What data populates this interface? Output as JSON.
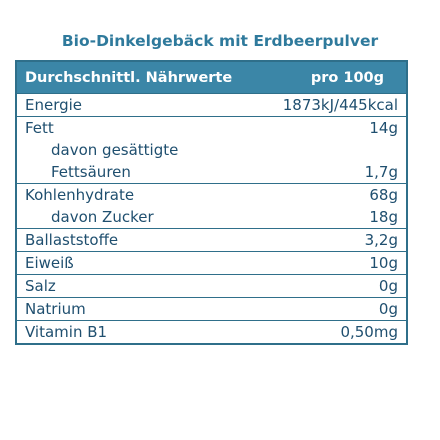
{
  "title": "Bio-Dinkelgebäck mit Erdbeerpulver",
  "header": {
    "label": "Durchschnittl. Nährwerte",
    "value": "pro 100g"
  },
  "groups": [
    {
      "rows": [
        {
          "label": "Energie",
          "value": "1873kJ/445kcal"
        }
      ]
    },
    {
      "rows": [
        {
          "label": "Fett",
          "value": "14g"
        },
        {
          "label": "davon gesättigte\nFettsäuren",
          "value": "1,7g"
        }
      ]
    },
    {
      "rows": [
        {
          "label": "Kohlenhydrate",
          "value": "68g"
        },
        {
          "label": "davon Zucker",
          "value": "18g"
        }
      ]
    },
    {
      "rows": [
        {
          "label": "Ballaststoffe",
          "value": "3,2g"
        }
      ]
    },
    {
      "rows": [
        {
          "label": "Eiweiß",
          "value": "10g"
        }
      ]
    },
    {
      "rows": [
        {
          "label": "Salz",
          "value": "0g"
        }
      ]
    },
    {
      "rows": [
        {
          "label": "Natrium",
          "value": "0g"
        }
      ]
    },
    {
      "rows": [
        {
          "label": "Vitamin B1",
          "value": "0,50mg"
        }
      ]
    }
  ]
}
